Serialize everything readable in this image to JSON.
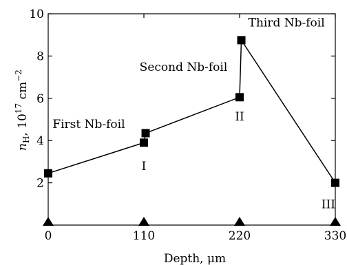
{
  "chart_data": {
    "type": "line",
    "xlabel": "Depth, μm",
    "ylabel": {
      "symbol": "n",
      "sub": "H",
      "text": ", 10",
      "sup": "17",
      "unit": " cm",
      "unit_sup": "−2"
    },
    "xlim": [
      0,
      330
    ],
    "ylim": [
      0,
      10
    ],
    "x_ticks": [
      0,
      110,
      220,
      330
    ],
    "y_ticks": [
      2,
      4,
      6,
      8,
      10
    ],
    "series": [
      {
        "marker": "square",
        "points": [
          {
            "x": 0,
            "y": 2.45
          },
          {
            "x": 110,
            "y": 3.9
          },
          {
            "x": 112,
            "y": 4.35
          },
          {
            "x": 220,
            "y": 6.05
          },
          {
            "x": 222,
            "y": 8.75
          },
          {
            "x": 330,
            "y": 2.0
          }
        ]
      },
      {
        "marker": "triangle",
        "points": [
          {
            "x": 0,
            "y": 0
          },
          {
            "x": 110,
            "y": 0
          },
          {
            "x": 220,
            "y": 0
          },
          {
            "x": 330,
            "y": 0
          }
        ]
      }
    ],
    "annotations": [
      {
        "text": "First Nb-foil",
        "x": 5,
        "y": 4.6,
        "anchor": "start"
      },
      {
        "text": "Second Nb-foil",
        "x": 105,
        "y": 7.3,
        "anchor": "start"
      },
      {
        "text": "Third Nb-foil",
        "x": 230,
        "y": 9.4,
        "anchor": "start"
      },
      {
        "text": "I",
        "x": 110,
        "y": 2.6,
        "anchor": "middle"
      },
      {
        "text": "II",
        "x": 220,
        "y": 4.95,
        "anchor": "middle"
      },
      {
        "text": "III",
        "x": 322,
        "y": 0.8,
        "anchor": "middle"
      }
    ]
  }
}
